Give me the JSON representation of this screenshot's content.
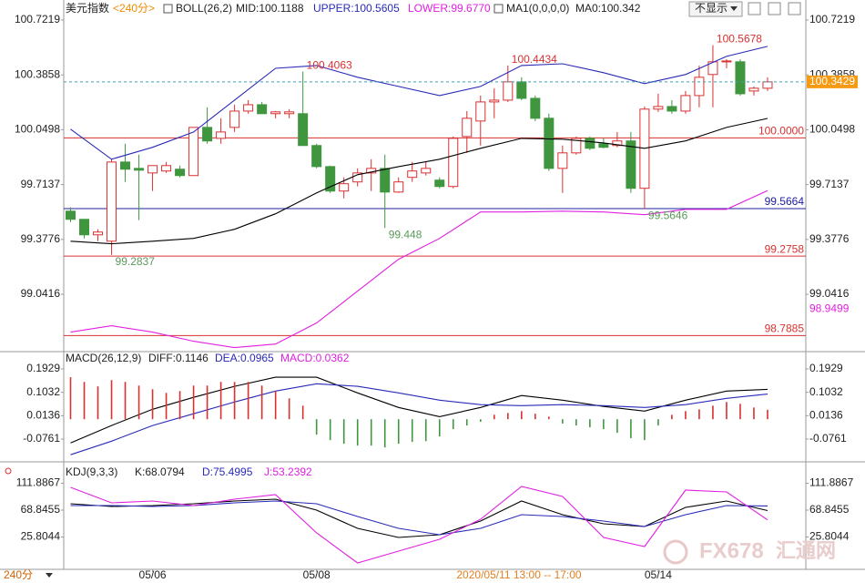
{
  "chart_data": [
    {
      "type": "candlestick",
      "title": "美元指数",
      "period": "<240分>",
      "indicator": "BOLL(26,2)",
      "ma1": "MA1(0,0,0,0)",
      "ma0": {
        "name": "MA0:",
        "value": 100.342
      },
      "xlim": [
        -0.5,
        53.8
      ],
      "xticks": [
        {
          "value": 6,
          "label": "05/06"
        },
        {
          "value": 18,
          "label": "05/08"
        },
        {
          "value": 43,
          "label": "05/14"
        }
      ],
      "ylim": [
        98.696,
        100.744
      ],
      "yticks": [
        100.7219,
        100.3858,
        100.0498,
        99.7137,
        99.3776,
        99.0416
      ],
      "up_color": "#d93030",
      "down_color": "#3f963f",
      "open": [
        99.551,
        99.501,
        99.406,
        99.367,
        99.852,
        99.813,
        99.785,
        99.797,
        99.808,
        99.769,
        100.064,
        99.997,
        100.064,
        100.164,
        100.203,
        100.148,
        100.148,
        100.148,
        99.953,
        99.824,
        99.674,
        99.73,
        99.785,
        99.813,
        99.668,
        99.758,
        99.785,
        99.741,
        99.702,
        100.008,
        100.103,
        100.22,
        100.231,
        100.343,
        100.242,
        100.12,
        99.813,
        99.908,
        99.997,
        99.964,
        99.953,
        99.981,
        99.691,
        100.176,
        100.192,
        100.164,
        100.259,
        100.388,
        100.466,
        100.466,
        100.287,
        100.304
      ],
      "high": [
        99.574,
        99.501,
        99.44,
        99.869,
        99.964,
        99.897,
        99.83,
        99.852,
        99.83,
        100.064,
        100.187,
        100.12,
        100.203,
        100.231,
        100.22,
        100.164,
        100.176,
        100.4063,
        99.964,
        99.83,
        99.758,
        99.813,
        99.869,
        99.897,
        99.758,
        99.852,
        99.852,
        99.758,
        100.008,
        100.164,
        100.259,
        100.304,
        100.4434,
        100.371,
        100.259,
        100.148,
        99.953,
        100.008,
        100.008,
        99.997,
        100.036,
        100.036,
        100.192,
        100.27,
        100.231,
        100.287,
        100.443,
        100.5678,
        100.482,
        100.482,
        100.315,
        100.371
      ],
      "low": [
        99.484,
        99.384,
        99.367,
        99.2837,
        99.73,
        99.496,
        99.674,
        99.785,
        99.758,
        99.769,
        99.964,
        99.964,
        100.036,
        100.148,
        100.148,
        100.12,
        100.12,
        99.953,
        99.813,
        99.663,
        99.629,
        99.702,
        99.674,
        99.448,
        99.663,
        99.73,
        99.769,
        99.691,
        99.691,
        99.908,
        99.953,
        100.12,
        100.22,
        100.231,
        100.103,
        99.797,
        99.663,
        99.897,
        99.925,
        99.936,
        99.942,
        99.663,
        99.5646,
        100.159,
        100.148,
        100.148,
        100.187,
        100.187,
        100.426,
        100.259,
        100.259,
        100.287
      ],
      "close": [
        99.501,
        99.406,
        99.423,
        99.852,
        99.808,
        99.802,
        99.83,
        99.83,
        99.769,
        100.064,
        99.981,
        100.036,
        100.164,
        100.203,
        100.148,
        100.159,
        100.159,
        99.953,
        99.824,
        99.674,
        99.719,
        99.785,
        99.813,
        99.668,
        99.73,
        99.797,
        99.813,
        99.702,
        99.997,
        100.12,
        100.22,
        100.231,
        100.343,
        100.242,
        100.12,
        99.813,
        99.908,
        99.997,
        99.936,
        99.942,
        99.981,
        99.691,
        100.176,
        100.192,
        100.164,
        100.259,
        100.371,
        100.466,
        100.471,
        100.27,
        100.304,
        100.3429
      ],
      "series": [
        {
          "name": "MID:",
          "color": "#000000",
          "x": [
            0,
            3,
            6,
            9,
            12,
            15,
            18,
            21,
            24,
            27,
            30,
            33,
            36,
            39,
            42,
            45,
            48,
            51
          ],
          "values": [
            99.367,
            99.351,
            99.367,
            99.384,
            99.44,
            99.535,
            99.663,
            99.774,
            99.824,
            99.869,
            99.936,
            99.997,
            99.992,
            99.969,
            99.936,
            99.981,
            100.064,
            100.1188
          ]
        },
        {
          "name": "UPPER:",
          "color": "#2a2ab8",
          "x": [
            0,
            3,
            6,
            9,
            12,
            15,
            18,
            21,
            24,
            27,
            30,
            33,
            36,
            39,
            42,
            45,
            48,
            51
          ],
          "values": [
            100.053,
            99.869,
            99.942,
            100.036,
            100.231,
            100.426,
            100.443,
            100.371,
            100.315,
            100.259,
            100.315,
            100.443,
            100.454,
            100.399,
            100.332,
            100.388,
            100.499,
            100.5605
          ]
        },
        {
          "name": "LOWER:",
          "color": "#e020e0",
          "x": [
            0,
            3,
            6,
            9,
            12,
            15,
            18,
            21,
            24,
            27,
            30,
            33,
            36,
            39,
            42,
            45,
            48,
            51
          ],
          "values": [
            98.81,
            98.849,
            98.81,
            98.754,
            98.715,
            98.737,
            98.866,
            99.061,
            99.256,
            99.384,
            99.546,
            99.546,
            99.551,
            99.546,
            99.529,
            99.562,
            99.562,
            99.677
          ],
          "value_labels": [
            null,
            null,
            null,
            null,
            null,
            null,
            null,
            null,
            null,
            null,
            null,
            null,
            null,
            null,
            null,
            null,
            null,
            "99.6770"
          ]
        }
      ],
      "levels": [
        {
          "value": 100,
          "label": "100.0000"
        },
        99.5664,
        99.2758,
        98.7885
      ],
      "level_colors": [
        "#d93030",
        "#2020a0",
        "#d93030",
        "#d93030"
      ],
      "lower_mark": 98.9499,
      "lower_mark_color": "#e020e0",
      "price_line_color": "#3f9fb5",
      "price_tag_color": "#f59a12"
    },
    {
      "type": "macd",
      "title": "MACD(26,12,9)",
      "xlim": [
        -0.5,
        53.8
      ],
      "ylim": [
        -0.1564,
        0.2522
      ],
      "yticks": [
        0.1929,
        0.1032,
        0.0136,
        -0.0761
      ],
      "up_color": "#d93030",
      "down_color": "#3f963f",
      "series": [
        {
          "name": "DIFF:",
          "color": "#000000",
          "x": [
            0,
            3,
            6,
            9,
            12,
            15,
            18,
            21,
            24,
            27,
            30,
            33,
            36,
            39,
            42,
            45,
            48,
            51
          ],
          "values": [
            -0.091,
            -0.024,
            0.038,
            0.084,
            0.126,
            0.161,
            0.161,
            0.101,
            0.045,
            0.01,
            0.045,
            0.091,
            0.073,
            0.049,
            0.031,
            0.073,
            0.108,
            0.1146
          ]
        },
        {
          "name": "DEA:",
          "color": "#2a2ab8",
          "x": [
            0,
            3,
            6,
            9,
            12,
            15,
            18,
            21,
            24,
            27,
            30,
            33,
            36,
            39,
            42,
            45,
            48,
            51
          ],
          "values": [
            -0.136,
            -0.084,
            -0.024,
            0.021,
            0.066,
            0.108,
            0.136,
            0.126,
            0.101,
            0.073,
            0.056,
            0.052,
            0.056,
            0.052,
            0.045,
            0.056,
            0.08,
            0.0965
          ]
        },
        {
          "name": "MACD:",
          "color": "#e020e0",
          "type": "bar",
          "values": [
            0.161,
            0.143,
            0.126,
            0.15,
            0.143,
            0.129,
            0.115,
            0.101,
            0.108,
            0.129,
            0.129,
            0.143,
            0.143,
            0.143,
            0.129,
            0.108,
            0.08,
            0.052,
            -0.059,
            -0.08,
            -0.094,
            -0.101,
            -0.101,
            -0.108,
            -0.094,
            -0.087,
            -0.084,
            -0.066,
            -0.038,
            -0.024,
            -0.01,
            0.017,
            0.024,
            0.031,
            0.021,
            0.01,
            -0.017,
            -0.024,
            -0.031,
            -0.038,
            -0.052,
            -0.073,
            -0.08,
            -0.024,
            0.017,
            0.031,
            0.038,
            0.052,
            0.066,
            0.059,
            0.045,
            0.0362
          ]
        }
      ]
    },
    {
      "type": "line",
      "title": "KDJ(9,3,3)",
      "xlim": [
        -0.5,
        53.8
      ],
      "ylim": [
        -26,
        141.8
      ],
      "yticks": [
        111.8867,
        68.8455,
        25.8044
      ],
      "series": [
        {
          "name": "K:",
          "color": "#000000",
          "x": [
            0,
            3,
            6,
            9,
            12,
            15,
            18,
            21,
            24,
            27,
            30,
            33,
            36,
            39,
            42,
            45,
            48,
            51
          ],
          "values": [
            79.1,
            74.7,
            76.1,
            79.1,
            83.4,
            86.4,
            68.8,
            39.7,
            25.1,
            29.4,
            51.3,
            83.4,
            61.5,
            47.0,
            42.6,
            73.2,
            83.4,
            68.0794
          ]
        },
        {
          "name": "D:",
          "color": "#2a2ab8",
          "x": [
            0,
            3,
            6,
            9,
            12,
            15,
            18,
            21,
            24,
            27,
            30,
            33,
            36,
            39,
            42,
            45,
            48,
            51
          ],
          "values": [
            76.1,
            76.1,
            74.7,
            76.1,
            80.5,
            83.4,
            79.1,
            58.6,
            39.7,
            29.4,
            39.7,
            61.5,
            58.6,
            51.3,
            42.6,
            61.5,
            76.1,
            75.4995
          ]
        },
        {
          "name": "J:",
          "color": "#e020e0",
          "x": [
            0,
            3,
            6,
            9,
            12,
            15,
            18,
            21,
            24,
            27,
            30,
            33,
            36,
            39,
            42,
            45,
            48,
            51
          ],
          "values": [
            105.3,
            80.5,
            83.4,
            76.1,
            86.4,
            93.6,
            32.4,
            -15.8,
            3.2,
            22.2,
            54.3,
            106.8,
            90.7,
            25.1,
            10.5,
            100.9,
            98.0,
            53.2392
          ]
        }
      ]
    }
  ],
  "toolbar": {
    "dropdown": "不显示"
  },
  "footer": {
    "period_tab": "240分",
    "crosshair_time": "2020/05/11 13:00 -- 17:00"
  },
  "watermark": {
    "brand": "FX678",
    "name": "汇通网"
  }
}
